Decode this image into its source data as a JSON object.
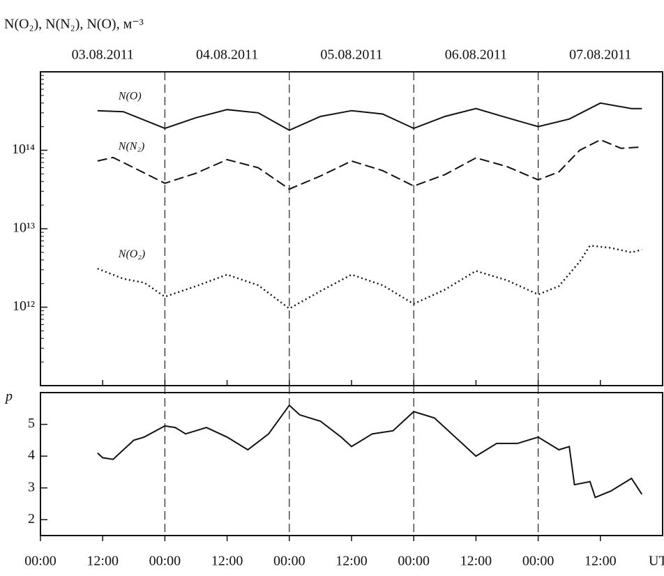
{
  "chart_data": [
    {
      "type": "line",
      "log_y": true,
      "ylabel": "N(O₂), N(N₂), N(O), м⁻³",
      "xlim": [
        0,
        120
      ],
      "ylim": [
        100000000000.0,
        1000000000000000.0
      ],
      "yticks": [
        {
          "value": 1000000000000.0,
          "label": "10¹²"
        },
        {
          "value": 10000000000000.0,
          "label": "10¹³"
        },
        {
          "value": 100000000000000.0,
          "label": "10¹⁴"
        }
      ],
      "date_labels": [
        {
          "value": 12,
          "label": "03.08.2011"
        },
        {
          "value": 36,
          "label": "04.08.2011"
        },
        {
          "value": 60,
          "label": "05.08.2011"
        },
        {
          "value": 84,
          "label": "06.08.2011"
        },
        {
          "value": 108,
          "label": "07.08.2011"
        }
      ],
      "vlines": [
        24,
        48,
        72,
        96
      ],
      "series": [
        {
          "name": "N(O)",
          "color": "#111",
          "dash": "solid",
          "x": [
            11,
            16,
            24,
            30,
            36,
            42,
            48,
            54,
            60,
            66,
            72,
            78,
            84,
            90,
            96,
            102,
            108,
            114,
            116
          ],
          "values": [
            320000000000000.0,
            310000000000000.0,
            190000000000000.0,
            260000000000000.0,
            330000000000000.0,
            300000000000000.0,
            180000000000000.0,
            270000000000000.0,
            320000000000000.0,
            290000000000000.0,
            190000000000000.0,
            270000000000000.0,
            340000000000000.0,
            260000000000000.0,
            200000000000000.0,
            250000000000000.0,
            400000000000000.0,
            340000000000000.0,
            340000000000000.0
          ]
        },
        {
          "name": "N(N₂)",
          "color": "#111",
          "dash": "dashed",
          "x": [
            11,
            14,
            18,
            24,
            30,
            36,
            42,
            48,
            54,
            60,
            66,
            72,
            78,
            84,
            90,
            96,
            100,
            104,
            108,
            112,
            116
          ],
          "values": [
            73000000000000.0,
            81000000000000.0,
            60000000000000.0,
            38000000000000.0,
            51000000000000.0,
            76000000000000.0,
            60000000000000.0,
            32000000000000.0,
            47000000000000.0,
            73000000000000.0,
            55000000000000.0,
            35000000000000.0,
            49000000000000.0,
            80000000000000.0,
            62000000000000.0,
            42000000000000.0,
            53000000000000.0,
            100000000000000.0,
            136000000000000.0,
            106000000000000.0,
            110000000000000.0
          ]
        },
        {
          "name": "N(O₂)",
          "color": "#111",
          "dash": "dotted",
          "x": [
            11,
            16,
            20,
            24,
            30,
            36,
            42,
            48,
            54,
            60,
            66,
            72,
            78,
            84,
            90,
            96,
            100,
            104,
            106,
            110,
            114,
            116
          ],
          "values": [
            3100000000000.0,
            2300000000000.0,
            2050000000000.0,
            1360000000000.0,
            1850000000000.0,
            2600000000000.0,
            1900000000000.0,
            960000000000.0,
            1600000000000.0,
            2600000000000.0,
            1900000000000.0,
            1100000000000.0,
            1670000000000.0,
            2900000000000.0,
            2200000000000.0,
            1450000000000.0,
            1850000000000.0,
            3800000000000.0,
            6100000000000.0,
            5700000000000.0,
            5000000000000.0,
            5400000000000.0
          ]
        }
      ]
    },
    {
      "type": "line",
      "log_y": false,
      "ylabel": "p",
      "xlabel": "UT",
      "xlim": [
        0,
        120
      ],
      "ylim": [
        1.5,
        6
      ],
      "yticks": [
        2,
        3,
        4,
        5
      ],
      "xticks": [
        {
          "value": 0,
          "label": "00:00"
        },
        {
          "value": 12,
          "label": "12:00"
        },
        {
          "value": 24,
          "label": "00:00"
        },
        {
          "value": 36,
          "label": "12:00"
        },
        {
          "value": 48,
          "label": "00:00"
        },
        {
          "value": 60,
          "label": "12:00"
        },
        {
          "value": 72,
          "label": "00:00"
        },
        {
          "value": 84,
          "label": "12:00"
        },
        {
          "value": 96,
          "label": "00:00"
        },
        {
          "value": 108,
          "label": "12:00"
        }
      ],
      "series": [
        {
          "color": "#111",
          "dash": "solid",
          "x": [
            11,
            12,
            14,
            18,
            20,
            24,
            26,
            28,
            32,
            36,
            40,
            44,
            48,
            50,
            54,
            58,
            60,
            64,
            68,
            72,
            76,
            80,
            84,
            88,
            92,
            96,
            100,
            102,
            103,
            106,
            107,
            110,
            114,
            116
          ],
          "values": [
            4.1,
            3.95,
            3.9,
            4.5,
            4.6,
            4.95,
            4.9,
            4.7,
            4.9,
            4.6,
            4.2,
            4.7,
            5.6,
            5.3,
            5.1,
            4.6,
            4.3,
            4.7,
            4.8,
            5.4,
            5.2,
            4.6,
            4.0,
            4.4,
            4.4,
            4.6,
            4.2,
            4.3,
            3.1,
            3.2,
            2.7,
            2.9,
            3.3,
            2.8
          ]
        }
      ]
    }
  ]
}
